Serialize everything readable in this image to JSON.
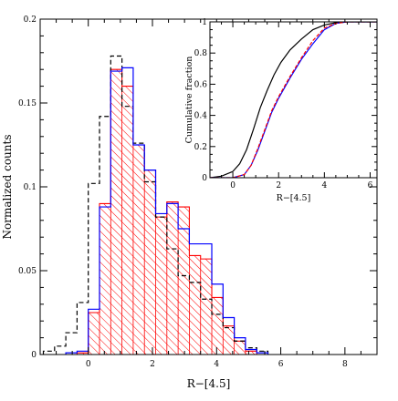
{
  "chart_data": [
    {
      "type": "histogram",
      "xlabel": "R−[4.5]",
      "ylabel": "Normalized counts",
      "xlim": [
        -1.5,
        9
      ],
      "ylim": [
        0,
        0.2
      ],
      "xticks": [
        0,
        2,
        4,
        6,
        8
      ],
      "yticks": [
        0,
        0.05,
        0.1,
        0.15,
        0.2
      ],
      "ytick_labels": [
        "0",
        "0.05",
        "0.1",
        "0.15",
        "0.2"
      ],
      "bin_width": 0.35,
      "series": [
        {
          "style": "dashed",
          "color": "#000000",
          "bins": [
            [
              -1.4,
              0.002
            ],
            [
              -1.05,
              0.005
            ],
            [
              -0.7,
              0.013
            ],
            [
              -0.35,
              0.031
            ],
            [
              0.0,
              0.102
            ],
            [
              0.35,
              0.142
            ],
            [
              0.7,
              0.178
            ],
            [
              1.05,
              0.148
            ],
            [
              1.4,
              0.126
            ],
            [
              1.75,
              0.103
            ],
            [
              2.1,
              0.082
            ],
            [
              2.45,
              0.063
            ],
            [
              2.8,
              0.047
            ],
            [
              3.15,
              0.043
            ],
            [
              3.5,
              0.033
            ],
            [
              3.85,
              0.024
            ],
            [
              4.2,
              0.016
            ],
            [
              4.55,
              0.008
            ],
            [
              4.9,
              0.004
            ],
            [
              5.25,
              0.002
            ]
          ]
        },
        {
          "style": "solid",
          "color": "#0000ff",
          "bins": [
            [
              -0.7,
              0.001
            ],
            [
              -0.35,
              0.002
            ],
            [
              0.0,
              0.027
            ],
            [
              0.35,
              0.088
            ],
            [
              0.7,
              0.169
            ],
            [
              1.05,
              0.171
            ],
            [
              1.4,
              0.125
            ],
            [
              1.75,
              0.11
            ],
            [
              2.1,
              0.084
            ],
            [
              2.45,
              0.09
            ],
            [
              2.8,
              0.075
            ],
            [
              3.15,
              0.066
            ],
            [
              3.5,
              0.066
            ],
            [
              3.85,
              0.042
            ],
            [
              4.2,
              0.022
            ],
            [
              4.55,
              0.01
            ],
            [
              4.9,
              0.003
            ],
            [
              5.25,
              0.001
            ]
          ]
        },
        {
          "style": "hatched",
          "color": "#ff0000",
          "bins": [
            [
              -0.35,
              0.001
            ],
            [
              0.0,
              0.025
            ],
            [
              0.35,
              0.09
            ],
            [
              0.7,
              0.17
            ],
            [
              1.05,
              0.16
            ],
            [
              1.4,
              0.125
            ],
            [
              1.75,
              0.11
            ],
            [
              2.1,
              0.082
            ],
            [
              2.45,
              0.091
            ],
            [
              2.8,
              0.088
            ],
            [
              3.15,
              0.059
            ],
            [
              3.5,
              0.057
            ],
            [
              3.85,
              0.034
            ],
            [
              4.2,
              0.017
            ],
            [
              4.55,
              0.008
            ],
            [
              4.9,
              0.002
            ]
          ]
        }
      ]
    },
    {
      "type": "line",
      "ylabel": "Cumulative fraction",
      "xlabel": "R−[4.5]",
      "xlim": [
        -1,
        6.3
      ],
      "ylim": [
        0,
        1
      ],
      "xticks": [
        0,
        2,
        4,
        6
      ],
      "yticks": [
        0,
        0.2,
        0.4,
        0.6,
        0.8,
        1
      ],
      "ytick_labels": [
        "0",
        "0.2",
        "0.4",
        "0.6",
        "0.8",
        "1"
      ],
      "series": [
        {
          "style": "solid",
          "color": "#000000",
          "points": [
            [
              -1.0,
              0.0
            ],
            [
              -0.5,
              0.01
            ],
            [
              0.0,
              0.04
            ],
            [
              0.3,
              0.09
            ],
            [
              0.6,
              0.18
            ],
            [
              0.9,
              0.31
            ],
            [
              1.2,
              0.45
            ],
            [
              1.5,
              0.56
            ],
            [
              1.8,
              0.66
            ],
            [
              2.1,
              0.74
            ],
            [
              2.5,
              0.82
            ],
            [
              3.0,
              0.89
            ],
            [
              3.5,
              0.95
            ],
            [
              4.0,
              0.98
            ],
            [
              4.5,
              0.995
            ],
            [
              5.0,
              1.0
            ],
            [
              6.3,
              1.0
            ]
          ]
        },
        {
          "style": "solid",
          "color": "#0000ff",
          "points": [
            [
              -1.0,
              0.0
            ],
            [
              0.0,
              0.0
            ],
            [
              0.5,
              0.02
            ],
            [
              0.8,
              0.08
            ],
            [
              1.1,
              0.18
            ],
            [
              1.4,
              0.3
            ],
            [
              1.7,
              0.42
            ],
            [
              2.0,
              0.51
            ],
            [
              2.5,
              0.64
            ],
            [
              3.0,
              0.76
            ],
            [
              3.5,
              0.86
            ],
            [
              4.0,
              0.95
            ],
            [
              4.5,
              0.99
            ],
            [
              5.0,
              1.0
            ],
            [
              6.3,
              1.0
            ]
          ]
        },
        {
          "style": "dashed",
          "color": "#ff0000",
          "points": [
            [
              -1.0,
              0.0
            ],
            [
              0.0,
              0.0
            ],
            [
              0.5,
              0.02
            ],
            [
              0.8,
              0.08
            ],
            [
              1.1,
              0.19
            ],
            [
              1.4,
              0.31
            ],
            [
              1.7,
              0.43
            ],
            [
              2.0,
              0.52
            ],
            [
              2.5,
              0.65
            ],
            [
              3.0,
              0.77
            ],
            [
              3.5,
              0.88
            ],
            [
              4.0,
              0.96
            ],
            [
              4.5,
              0.99
            ],
            [
              5.0,
              1.0
            ],
            [
              6.3,
              1.0
            ]
          ]
        }
      ]
    }
  ]
}
